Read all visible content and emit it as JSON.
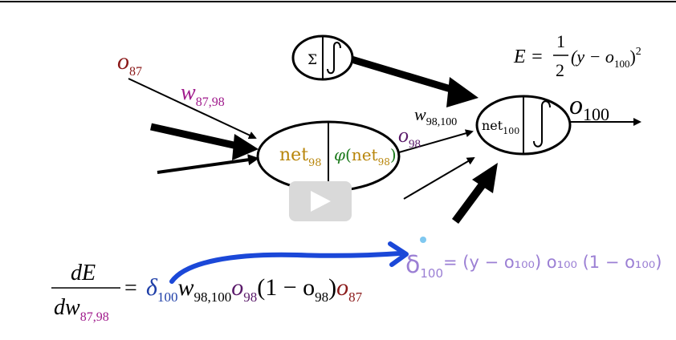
{
  "colors": {
    "ink": "#000000",
    "o87": "#8b1a1a",
    "w87_98": "#a01b8c",
    "net98": "#b8860b",
    "phi": "#1c7a1c",
    "o98": "#5a1a6a",
    "delta": "#1f3fa8",
    "handwriting": "#9b7fd4",
    "blue_arrow": "#1b48d8",
    "play_button": "#d9d9d9"
  },
  "labels": {
    "o87": "o",
    "o87_sub": "87",
    "w87_98": "w",
    "w87_98_sub": "87,98",
    "net98": "net",
    "net98_sub": "98",
    "phi": "φ",
    "phi_open": "(",
    "phi_net": "net",
    "phi_sub": "98",
    "phi_close": ")",
    "w98_100": "w",
    "w98_100_sub": "98,100",
    "o98": "o",
    "o98_sub": "98",
    "net100": "net",
    "net100_sub": "100",
    "sum_symbol": "Σ",
    "o100": "o",
    "o100_sub": "100"
  },
  "loss_formula": {
    "lhs": "E =",
    "frac_num": "1",
    "frac_den": "2",
    "body": "(y − o",
    "body_sub": "100",
    "body_close": ")",
    "power": "2"
  },
  "derivative": {
    "num": "dE",
    "den": "dw",
    "den_sub": "87,98",
    "equals": "=",
    "delta": "δ",
    "delta_sub": "100",
    "w": "w",
    "w_sub": "98,100",
    "o98": "o",
    "o98_sub": "98",
    "paren": "(1 − o",
    "paren_sub": "98",
    "paren_close": ")",
    "o87": "o",
    "o87_sub": "87"
  },
  "handwritten": {
    "delta": "δ",
    "delta_sub": "100",
    "rest": "= (y − o₁₀₀) o₁₀₀ (1 − o₁₀₀)"
  }
}
